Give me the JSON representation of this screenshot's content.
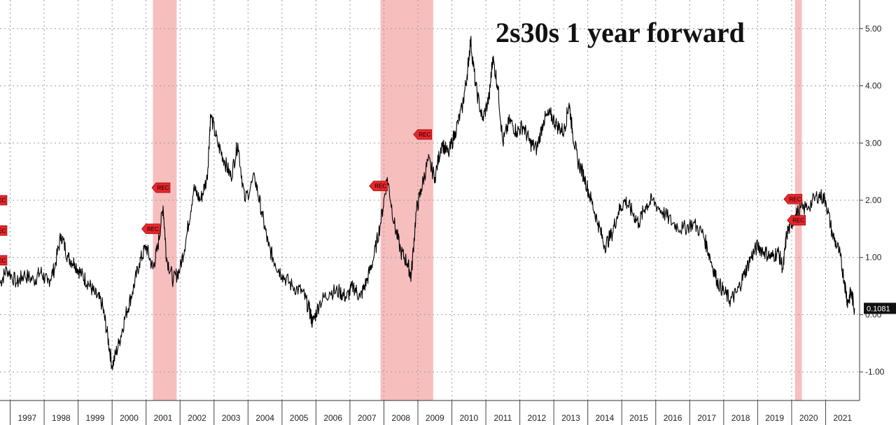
{
  "chart_data": {
    "type": "line",
    "title": "2s30s 1 year forward",
    "xlabel": "",
    "ylabel": "",
    "x_ticks": [
      "1997",
      "1998",
      "1999",
      "2000",
      "2001",
      "2002",
      "2003",
      "2004",
      "2005",
      "2006",
      "2007",
      "2008",
      "2009",
      "2010",
      "2011",
      "2012",
      "2013",
      "2014",
      "2015",
      "2016",
      "2017",
      "2018",
      "2019",
      "2020",
      "2021"
    ],
    "x_range": [
      1996.7,
      2022.0
    ],
    "y_ticks": [
      "-1.00",
      "0.00",
      "1.00",
      "2.00",
      "3.00",
      "4.00",
      "5.00"
    ],
    "ylim": [
      -1.5,
      5.5
    ],
    "grid": true,
    "y_axis_side": "right",
    "last_value_label": "0.1081",
    "series": [
      {
        "points": [
          [
            1996.7,
            0.55
          ],
          [
            1996.9,
            0.8
          ],
          [
            1997.2,
            0.55
          ],
          [
            1997.4,
            0.7
          ],
          [
            1997.7,
            0.6
          ],
          [
            1997.9,
            0.75
          ],
          [
            1998.1,
            0.55
          ],
          [
            1998.3,
            0.8
          ],
          [
            1998.5,
            1.4
          ],
          [
            1998.7,
            1.0
          ],
          [
            1998.9,
            0.9
          ],
          [
            1999.1,
            0.7
          ],
          [
            1999.3,
            0.55
          ],
          [
            1999.5,
            0.35
          ],
          [
            1999.7,
            0.2
          ],
          [
            1999.85,
            -0.3
          ],
          [
            2000.0,
            -0.9
          ],
          [
            2000.2,
            -0.5
          ],
          [
            2000.4,
            0.0
          ],
          [
            2000.6,
            0.4
          ],
          [
            2000.8,
            0.9
          ],
          [
            2001.0,
            1.2
          ],
          [
            2001.2,
            0.8
          ],
          [
            2001.35,
            1.2
          ],
          [
            2001.5,
            1.9
          ],
          [
            2001.6,
            1.0
          ],
          [
            2001.8,
            0.6
          ],
          [
            2002.0,
            0.8
          ],
          [
            2002.2,
            1.4
          ],
          [
            2002.4,
            2.2
          ],
          [
            2002.6,
            2.0
          ],
          [
            2002.8,
            2.4
          ],
          [
            2002.9,
            3.5
          ],
          [
            2003.1,
            3.0
          ],
          [
            2003.3,
            2.7
          ],
          [
            2003.5,
            2.4
          ],
          [
            2003.7,
            3.0
          ],
          [
            2003.9,
            2.0
          ],
          [
            2004.2,
            2.4
          ],
          [
            2004.4,
            1.8
          ],
          [
            2004.6,
            1.2
          ],
          [
            2004.8,
            0.9
          ],
          [
            2005.0,
            0.7
          ],
          [
            2005.3,
            0.5
          ],
          [
            2005.6,
            0.4
          ],
          [
            2005.8,
            0.1
          ],
          [
            2005.9,
            -0.15
          ],
          [
            2006.1,
            0.2
          ],
          [
            2006.4,
            0.4
          ],
          [
            2006.7,
            0.4
          ],
          [
            2006.9,
            0.3
          ],
          [
            2007.1,
            0.5
          ],
          [
            2007.3,
            0.3
          ],
          [
            2007.5,
            0.6
          ],
          [
            2007.7,
            1.0
          ],
          [
            2007.9,
            1.6
          ],
          [
            2008.1,
            2.4
          ],
          [
            2008.3,
            1.6
          ],
          [
            2008.5,
            1.1
          ],
          [
            2008.7,
            0.9
          ],
          [
            2008.8,
            0.65
          ],
          [
            2008.95,
            1.8
          ],
          [
            2009.1,
            2.2
          ],
          [
            2009.3,
            2.7
          ],
          [
            2009.5,
            2.4
          ],
          [
            2009.7,
            3.0
          ],
          [
            2009.9,
            2.8
          ],
          [
            2010.1,
            3.2
          ],
          [
            2010.3,
            3.6
          ],
          [
            2010.45,
            4.2
          ],
          [
            2010.55,
            4.8
          ],
          [
            2010.7,
            4.0
          ],
          [
            2010.9,
            3.4
          ],
          [
            2011.1,
            3.8
          ],
          [
            2011.2,
            4.5
          ],
          [
            2011.35,
            4.0
          ],
          [
            2011.5,
            3.0
          ],
          [
            2011.7,
            3.4
          ],
          [
            2011.9,
            3.2
          ],
          [
            2012.1,
            3.3
          ],
          [
            2012.3,
            3.0
          ],
          [
            2012.5,
            2.9
          ],
          [
            2012.7,
            3.4
          ],
          [
            2012.9,
            3.5
          ],
          [
            2013.1,
            3.3
          ],
          [
            2013.3,
            3.2
          ],
          [
            2013.45,
            3.7
          ],
          [
            2013.55,
            3.2
          ],
          [
            2013.7,
            2.7
          ],
          [
            2013.9,
            2.4
          ],
          [
            2014.1,
            2.0
          ],
          [
            2014.3,
            1.6
          ],
          [
            2014.5,
            1.2
          ],
          [
            2014.7,
            1.4
          ],
          [
            2014.9,
            1.8
          ],
          [
            2015.1,
            2.0
          ],
          [
            2015.3,
            1.8
          ],
          [
            2015.5,
            1.6
          ],
          [
            2015.7,
            1.9
          ],
          [
            2015.9,
            2.0
          ],
          [
            2016.2,
            1.8
          ],
          [
            2016.5,
            1.6
          ],
          [
            2016.8,
            1.5
          ],
          [
            2017.1,
            1.6
          ],
          [
            2017.4,
            1.4
          ],
          [
            2017.6,
            1.0
          ],
          [
            2017.8,
            0.6
          ],
          [
            2018.0,
            0.4
          ],
          [
            2018.2,
            0.25
          ],
          [
            2018.4,
            0.4
          ],
          [
            2018.6,
            0.7
          ],
          [
            2018.8,
            1.0
          ],
          [
            2019.0,
            1.2
          ],
          [
            2019.2,
            1.1
          ],
          [
            2019.4,
            1.0
          ],
          [
            2019.6,
            1.1
          ],
          [
            2019.75,
            0.8
          ],
          [
            2019.85,
            1.4
          ],
          [
            2020.0,
            1.6
          ],
          [
            2020.2,
            1.8
          ],
          [
            2020.5,
            1.9
          ],
          [
            2020.8,
            2.1
          ],
          [
            2021.0,
            2.0
          ],
          [
            2021.2,
            1.4
          ],
          [
            2021.4,
            1.1
          ],
          [
            2021.55,
            0.6
          ],
          [
            2021.65,
            0.2
          ],
          [
            2021.75,
            0.4
          ],
          [
            2021.85,
            0.11
          ]
        ]
      }
    ],
    "recession_bands": [
      {
        "start": 2001.2,
        "end": 2001.9
      },
      {
        "start": 2007.9,
        "end": 2009.45
      },
      {
        "start": 2020.1,
        "end": 2020.3
      }
    ],
    "markers": [
      {
        "text": "REC",
        "x": 1996.7,
        "y": 2.0
      },
      {
        "text": "REC",
        "x": 1996.7,
        "y": 1.47
      },
      {
        "text": "REC",
        "x": 1996.7,
        "y": 0.95
      },
      {
        "text": "REC",
        "x": 2001.2,
        "y": 1.5
      },
      {
        "text": "REC",
        "x": 2001.5,
        "y": 2.22
      },
      {
        "text": "REC",
        "x": 2007.9,
        "y": 2.25
      },
      {
        "text": "REC",
        "x": 2009.2,
        "y": 3.15
      },
      {
        "text": "REC",
        "x": 2020.1,
        "y": 2.02
      },
      {
        "text": "REC",
        "x": 2020.2,
        "y": 1.65
      }
    ]
  }
}
